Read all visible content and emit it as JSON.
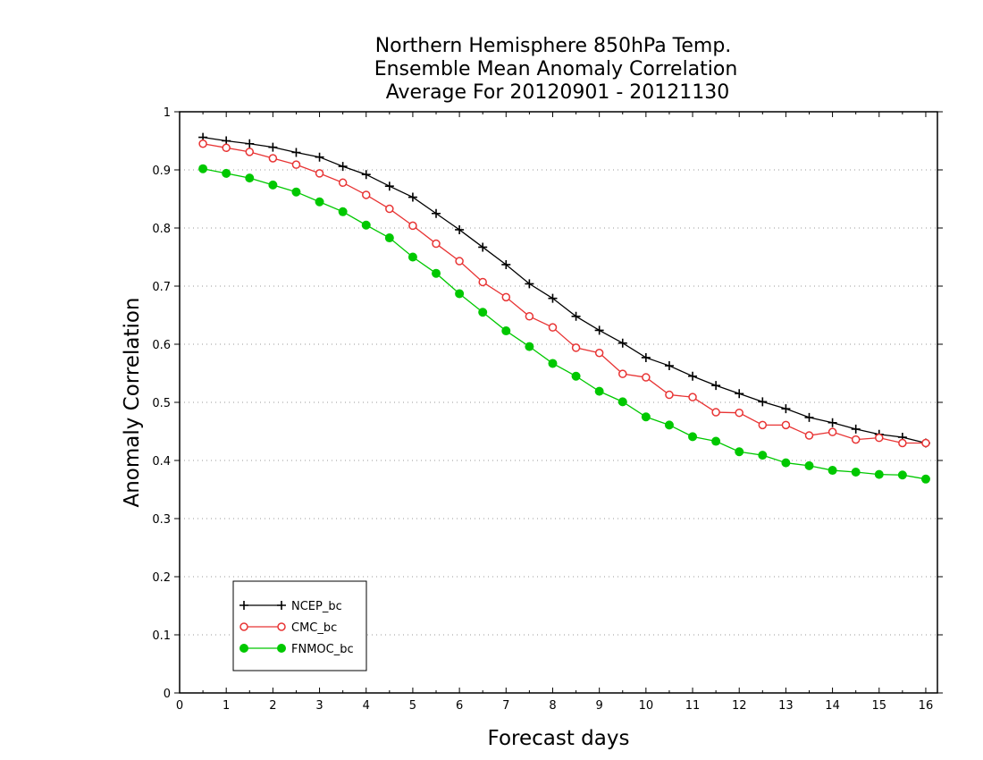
{
  "chart_data": {
    "type": "line",
    "title_lines": [
      "Northern Hemisphere 850hPa Temp.",
      "Ensemble Mean Anomaly Correlation",
      "Average For 20120901 - 20121130"
    ],
    "xlabel": "Forecast days",
    "ylabel": "Anomaly Correlation",
    "xlim": [
      0,
      16.25
    ],
    "ylim": [
      0,
      1
    ],
    "x_ticks": [
      0,
      1,
      2,
      3,
      4,
      5,
      6,
      7,
      8,
      9,
      10,
      11,
      12,
      13,
      14,
      15,
      16
    ],
    "y_ticks": [
      0,
      0.1,
      0.2,
      0.3,
      0.4,
      0.5,
      0.6,
      0.7,
      0.8,
      0.9,
      1
    ],
    "y_tick_labels": [
      "0",
      "0.1",
      "0.2",
      "0.3",
      "0.4",
      "0.5",
      "0.6",
      "0.7",
      "0.8",
      "0.9",
      "1"
    ],
    "grid": "horizontal dotted",
    "legend_position": "bottom-left",
    "x": [
      0.5,
      1,
      1.5,
      2,
      2.5,
      3,
      3.5,
      4,
      4.5,
      5,
      5.5,
      6,
      6.5,
      7,
      7.5,
      8,
      8.5,
      9,
      9.5,
      10,
      10.5,
      11,
      11.5,
      12,
      12.5,
      13,
      13.5,
      14,
      14.5,
      15,
      15.5,
      16
    ],
    "series": [
      {
        "name": "NCEP_bc",
        "color": "#000000",
        "marker": "plus",
        "values": [
          0.956,
          0.95,
          0.945,
          0.939,
          0.93,
          0.922,
          0.906,
          0.892,
          0.872,
          0.853,
          0.825,
          0.797,
          0.767,
          0.737,
          0.704,
          0.679,
          0.648,
          0.624,
          0.602,
          0.577,
          0.563,
          0.545,
          0.529,
          0.515,
          0.501,
          0.489,
          0.474,
          0.465,
          0.454,
          0.445,
          0.44,
          0.43
        ]
      },
      {
        "name": "CMC_bc",
        "color": "#e83434",
        "marker": "open-circle",
        "values": [
          0.945,
          0.938,
          0.931,
          0.92,
          0.909,
          0.894,
          0.878,
          0.857,
          0.833,
          0.804,
          0.773,
          0.743,
          0.707,
          0.681,
          0.648,
          0.629,
          0.594,
          0.585,
          0.549,
          0.543,
          0.513,
          0.509,
          0.483,
          0.482,
          0.461,
          0.461,
          0.443,
          0.449,
          0.436,
          0.439,
          0.43,
          0.43
        ]
      },
      {
        "name": "FNMOC_bc",
        "color": "#00c800",
        "marker": "filled-circle",
        "values": [
          0.902,
          0.894,
          0.886,
          0.874,
          0.862,
          0.845,
          0.828,
          0.805,
          0.783,
          0.75,
          0.722,
          0.687,
          0.655,
          0.623,
          0.596,
          0.567,
          0.545,
          0.519,
          0.501,
          0.475,
          0.461,
          0.441,
          0.433,
          0.415,
          0.409,
          0.396,
          0.391,
          0.383,
          0.38,
          0.376,
          0.375,
          0.368
        ]
      }
    ]
  }
}
